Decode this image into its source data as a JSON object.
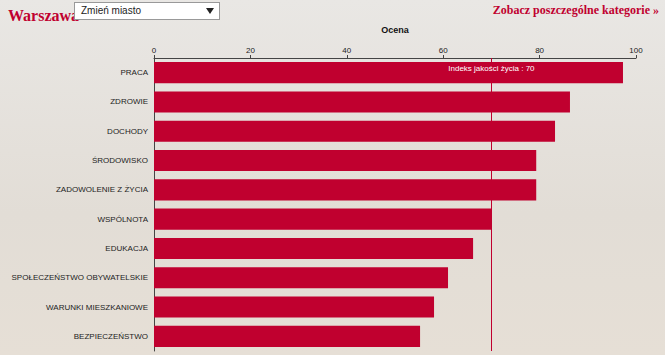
{
  "page": {
    "select": "Zmień miasto",
    "link": "Zobacz poszczególne kategorie »"
  },
  "chart_data": {
    "type": "bar",
    "orientation": "horizontal",
    "title": "Warszawa",
    "xlabel": "Ocena",
    "categories": [
      "PRACA",
      "ZDROWIE",
      "DOCHODY",
      "ŚRODOWISKO",
      "ZADOWOLENIE Z ŻYCIA",
      "WSPÓLNOTA",
      "EDUKACJA",
      "SPOŁECZEŃSTWO OBYWATELSKIE",
      "WARUNKI MIESZKANIOWE",
      "BEZPIECZEŃSTWO"
    ],
    "values": [
      97.3,
      86.3,
      83.2,
      79.3,
      79.3,
      70.1,
      66.2,
      61,
      58.1,
      55.2
    ],
    "color": "#c0002f",
    "xlim": [
      0,
      100
    ],
    "xticks": [
      0,
      20,
      40,
      60,
      80,
      100
    ],
    "grid": false,
    "annotations": [
      {
        "text": "Indeks jakości życia : 70",
        "x": 70
      }
    ]
  }
}
